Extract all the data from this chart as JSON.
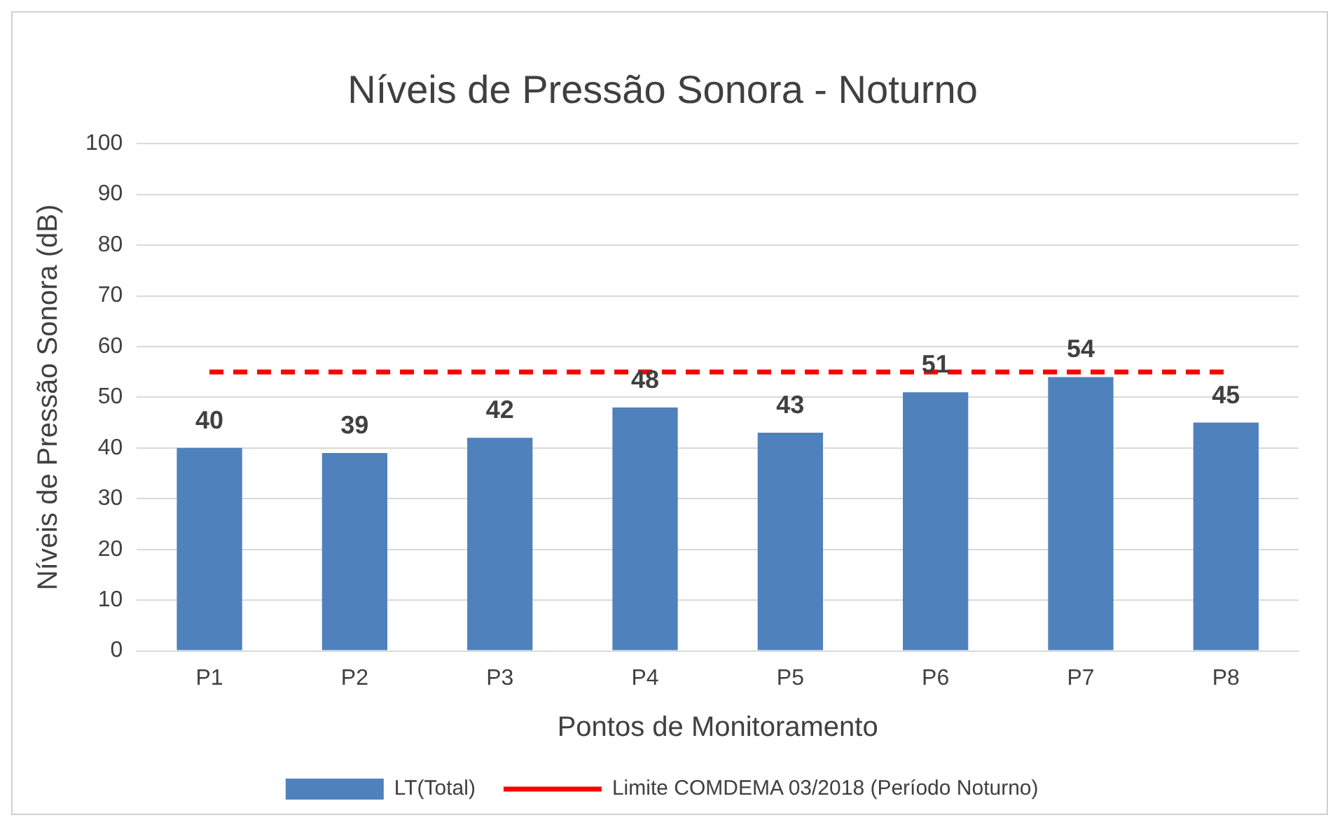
{
  "chart_data": {
    "type": "bar",
    "title": "Níveis de Pressão Sonora - Noturno",
    "xlabel": "Pontos de Monitoramento",
    "ylabel": "Níveis de Pressão Sonora (dB)",
    "categories": [
      "P1",
      "P2",
      "P3",
      "P4",
      "P5",
      "P6",
      "P7",
      "P8"
    ],
    "series": [
      {
        "name": "LT(Total)",
        "color": "#4f81bd",
        "values": [
          40,
          39,
          42,
          48,
          43,
          51,
          54,
          45
        ]
      }
    ],
    "ref_lines": [
      {
        "axis": "y",
        "value": 55,
        "label": "Limite COMDEMA 03/2018 (Período Noturno)",
        "color": "#ff0000",
        "line_style": "dashed"
      }
    ],
    "ylim": [
      0,
      100
    ],
    "yticks": [
      0,
      10,
      20,
      30,
      40,
      50,
      60,
      70,
      80,
      90,
      100
    ],
    "grid": "y",
    "legend": "bottom",
    "data_labels": true
  }
}
